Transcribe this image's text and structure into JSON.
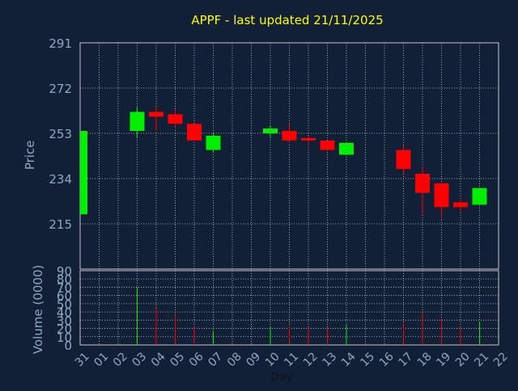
{
  "chart_data": [
    {
      "type": "candlestick",
      "title": "APPF - last updated 21/11/2025",
      "ylabel": "Price",
      "ylim": [
        196,
        291
      ],
      "yticks": [
        215,
        234,
        253,
        272,
        291
      ],
      "grid": true,
      "candles": [
        {
          "x": "31",
          "open": 219,
          "high": 254,
          "low": 219,
          "close": 254
        },
        {
          "x": "03",
          "open": 254,
          "high": 264,
          "low": 251,
          "close": 262
        },
        {
          "x": "04",
          "open": 262,
          "high": 264,
          "low": 254,
          "close": 260
        },
        {
          "x": "05",
          "open": 261,
          "high": 263,
          "low": 255,
          "close": 257
        },
        {
          "x": "06",
          "open": 257,
          "high": 257,
          "low": 250,
          "close": 250
        },
        {
          "x": "07",
          "open": 246,
          "high": 253,
          "low": 245,
          "close": 252
        },
        {
          "x": "10",
          "open": 253,
          "high": 256,
          "low": 251,
          "close": 255
        },
        {
          "x": "11",
          "open": 254,
          "high": 257,
          "low": 249,
          "close": 250
        },
        {
          "x": "12",
          "open": 251,
          "high": 252,
          "low": 248,
          "close": 250
        },
        {
          "x": "13",
          "open": 250,
          "high": 250,
          "low": 246,
          "close": 246
        },
        {
          "x": "14",
          "open": 244,
          "high": 249,
          "low": 244,
          "close": 249
        },
        {
          "x": "17",
          "open": 246,
          "high": 248,
          "low": 236,
          "close": 238
        },
        {
          "x": "18",
          "open": 236,
          "high": 239,
          "low": 219,
          "close": 228
        },
        {
          "x": "19",
          "open": 232,
          "high": 232,
          "low": 217,
          "close": 222
        },
        {
          "x": "20",
          "open": 224,
          "high": 225,
          "low": 220,
          "close": 222
        },
        {
          "x": "21",
          "open": 223,
          "high": 230,
          "low": 223,
          "close": 230
        }
      ]
    },
    {
      "type": "bar",
      "ylabel": "Volume (0000)",
      "xlabel": "Day",
      "ylim": [
        0,
        90
      ],
      "yticks": [
        0,
        10,
        20,
        30,
        40,
        50,
        60,
        70,
        80,
        90
      ],
      "categories": [
        "31",
        "01",
        "02",
        "03",
        "04",
        "05",
        "06",
        "07",
        "08",
        "09",
        "10",
        "11",
        "12",
        "13",
        "14",
        "15",
        "16",
        "17",
        "18",
        "19",
        "20",
        "21",
        "22"
      ],
      "values": [
        0,
        0,
        0,
        70,
        45,
        35,
        22,
        17,
        0,
        0,
        22,
        23,
        21,
        21,
        24,
        0,
        0,
        26,
        38,
        32,
        21,
        28,
        0
      ],
      "up": [
        true,
        true,
        true,
        true,
        false,
        false,
        false,
        true,
        true,
        true,
        true,
        false,
        false,
        false,
        true,
        true,
        true,
        false,
        false,
        false,
        false,
        true,
        true
      ]
    }
  ],
  "colors": {
    "background": "#112036",
    "grid": "#c8c8c8",
    "axis_text": "#8fa8c4",
    "title": "#ffff00",
    "up": "#00ee00",
    "down": "#ff0000"
  }
}
